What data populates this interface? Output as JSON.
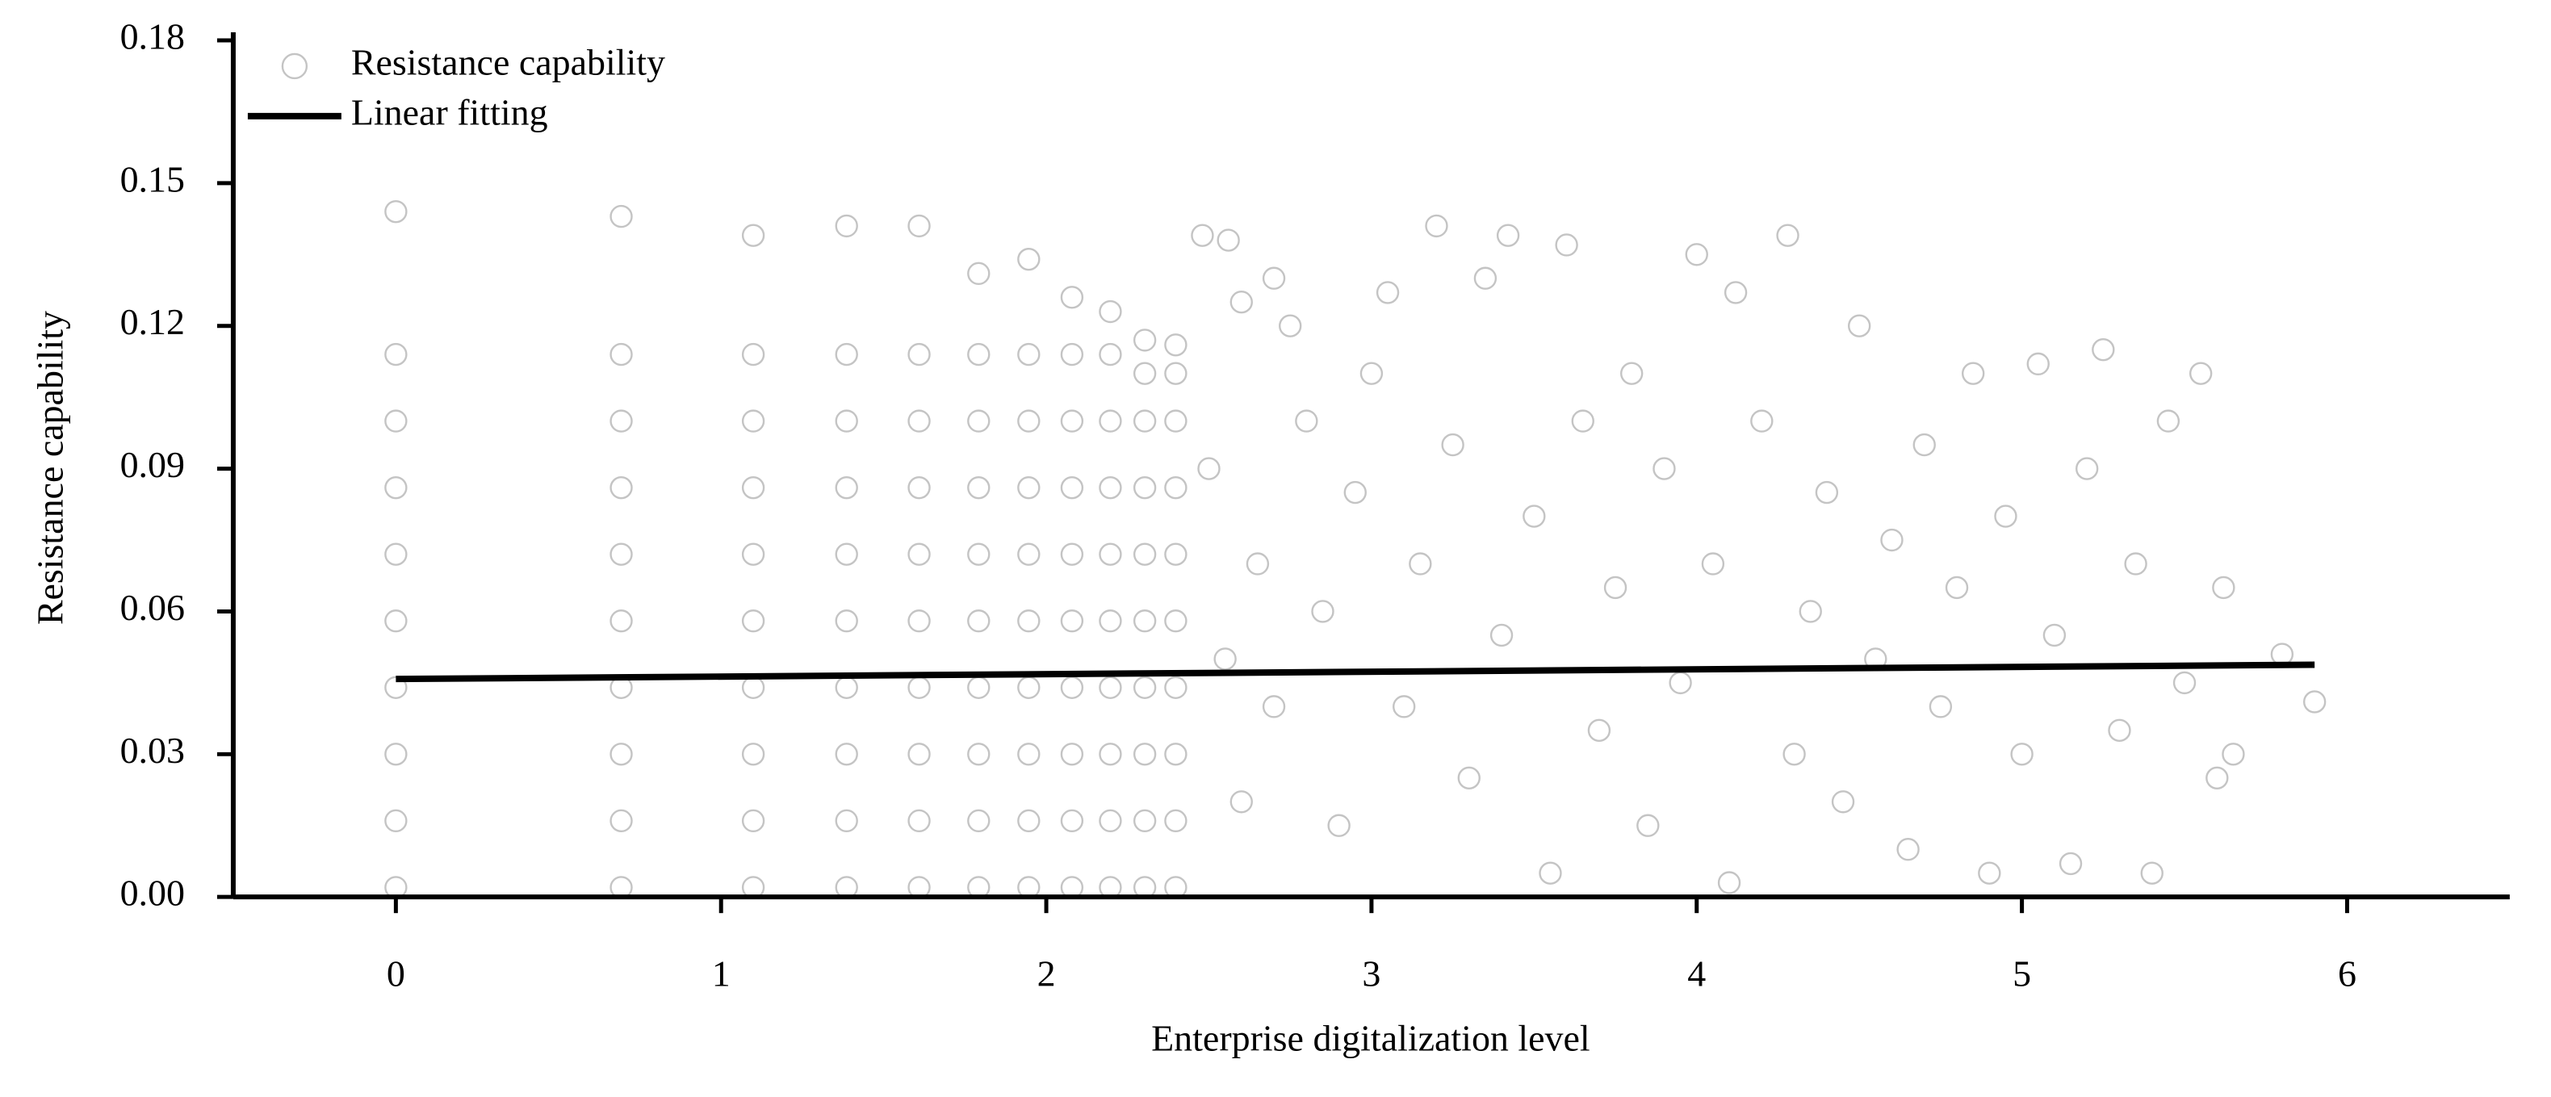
{
  "chart_data": {
    "type": "scatter",
    "xlabel": "Enterprise digitalization level",
    "ylabel": "Resistance capability",
    "xlim": [
      -0.5,
      6.5
    ],
    "ylim": [
      0,
      0.18
    ],
    "xticks": [
      0,
      1,
      2,
      3,
      4,
      5,
      6
    ],
    "yticks": [
      {
        "value": 0,
        "label": "0.00"
      },
      0.03,
      0.06,
      0.09,
      0.12,
      0.15,
      0.18
    ],
    "legend": "upper left",
    "series": [
      {
        "name": "Resistance capability",
        "type": "scatter",
        "color": "#c4c4c4",
        "x": [
          0,
          0,
          0,
          0,
          0,
          0,
          0,
          0,
          0,
          0,
          0.693,
          0.693,
          0.693,
          0.693,
          0.693,
          0.693,
          0.693,
          0.693,
          0.693,
          0.693,
          1.099,
          1.099,
          1.099,
          1.099,
          1.099,
          1.099,
          1.099,
          1.099,
          1.099,
          1.099,
          1.386,
          1.386,
          1.386,
          1.386,
          1.386,
          1.386,
          1.386,
          1.386,
          1.386,
          1.386,
          1.609,
          1.609,
          1.609,
          1.609,
          1.609,
          1.609,
          1.609,
          1.609,
          1.609,
          1.609,
          1.792,
          1.792,
          1.792,
          1.792,
          1.792,
          1.792,
          1.792,
          1.792,
          1.792,
          1.792,
          1.946,
          1.946,
          1.946,
          1.946,
          1.946,
          1.946,
          1.946,
          1.946,
          1.946,
          1.946,
          2.079,
          2.079,
          2.079,
          2.079,
          2.079,
          2.079,
          2.079,
          2.079,
          2.079,
          2.079,
          2.197,
          2.197,
          2.197,
          2.197,
          2.197,
          2.197,
          2.197,
          2.197,
          2.197,
          2.197,
          2.303,
          2.303,
          2.303,
          2.303,
          2.303,
          2.303,
          2.303,
          2.303,
          2.303,
          2.303,
          2.398,
          2.398,
          2.398,
          2.398,
          2.398,
          2.398,
          2.398,
          2.398,
          2.398,
          2.398,
          2.48,
          2.56,
          2.6,
          2.7,
          2.75,
          2.5,
          2.55,
          2.6,
          2.65,
          2.7,
          2.8,
          2.85,
          2.9,
          2.95,
          3.0,
          3.05,
          3.1,
          3.15,
          3.2,
          3.25,
          3.3,
          3.35,
          3.4,
          3.42,
          3.5,
          3.55,
          3.6,
          3.65,
          3.7,
          3.75,
          3.8,
          3.85,
          3.9,
          3.95,
          4.0,
          4.05,
          4.1,
          4.12,
          4.2,
          4.28,
          4.3,
          4.35,
          4.4,
          4.45,
          4.5,
          4.55,
          4.6,
          4.65,
          4.7,
          4.75,
          4.8,
          4.85,
          4.9,
          4.95,
          5.0,
          5.05,
          5.1,
          5.15,
          5.2,
          5.25,
          5.3,
          5.35,
          5.4,
          5.45,
          5.5,
          5.55,
          5.6,
          5.62,
          5.65,
          5.8,
          5.9
        ],
        "values": [
          0.002,
          0.016,
          0.03,
          0.044,
          0.058,
          0.072,
          0.086,
          0.1,
          0.114,
          0.144,
          0.002,
          0.016,
          0.03,
          0.044,
          0.058,
          0.072,
          0.086,
          0.1,
          0.114,
          0.143,
          0.002,
          0.016,
          0.03,
          0.044,
          0.058,
          0.072,
          0.086,
          0.1,
          0.114,
          0.139,
          0.002,
          0.016,
          0.03,
          0.044,
          0.058,
          0.072,
          0.086,
          0.1,
          0.114,
          0.141,
          0.002,
          0.016,
          0.03,
          0.044,
          0.058,
          0.072,
          0.086,
          0.1,
          0.114,
          0.141,
          0.002,
          0.016,
          0.03,
          0.044,
          0.058,
          0.072,
          0.086,
          0.1,
          0.114,
          0.131,
          0.002,
          0.016,
          0.03,
          0.044,
          0.058,
          0.072,
          0.086,
          0.1,
          0.114,
          0.134,
          0.002,
          0.016,
          0.03,
          0.044,
          0.058,
          0.072,
          0.086,
          0.1,
          0.114,
          0.126,
          0.002,
          0.016,
          0.03,
          0.044,
          0.058,
          0.072,
          0.086,
          0.1,
          0.114,
          0.123,
          0.002,
          0.016,
          0.03,
          0.044,
          0.058,
          0.072,
          0.086,
          0.1,
          0.11,
          0.117,
          0.002,
          0.016,
          0.03,
          0.044,
          0.058,
          0.072,
          0.086,
          0.1,
          0.11,
          0.116,
          0.139,
          0.138,
          0.125,
          0.13,
          0.12,
          0.09,
          0.05,
          0.02,
          0.07,
          0.04,
          0.1,
          0.06,
          0.015,
          0.085,
          0.11,
          0.127,
          0.04,
          0.07,
          0.141,
          0.095,
          0.025,
          0.13,
          0.055,
          0.139,
          0.08,
          0.005,
          0.137,
          0.1,
          0.035,
          0.065,
          0.11,
          0.015,
          0.09,
          0.045,
          0.135,
          0.07,
          0.003,
          0.127,
          0.1,
          0.139,
          0.03,
          0.06,
          0.085,
          0.02,
          0.12,
          0.05,
          0.075,
          0.01,
          0.095,
          0.04,
          0.065,
          0.11,
          0.005,
          0.08,
          0.03,
          0.112,
          0.055,
          0.007,
          0.09,
          0.115,
          0.035,
          0.07,
          0.005,
          0.1,
          0.045,
          0.11,
          0.025,
          0.065,
          0.03,
          0.051,
          0.041
        ]
      },
      {
        "name": "Linear fitting",
        "type": "line",
        "color": "#000000",
        "x": [
          0,
          5.9
        ],
        "values": [
          0.0458,
          0.0488
        ]
      }
    ]
  }
}
